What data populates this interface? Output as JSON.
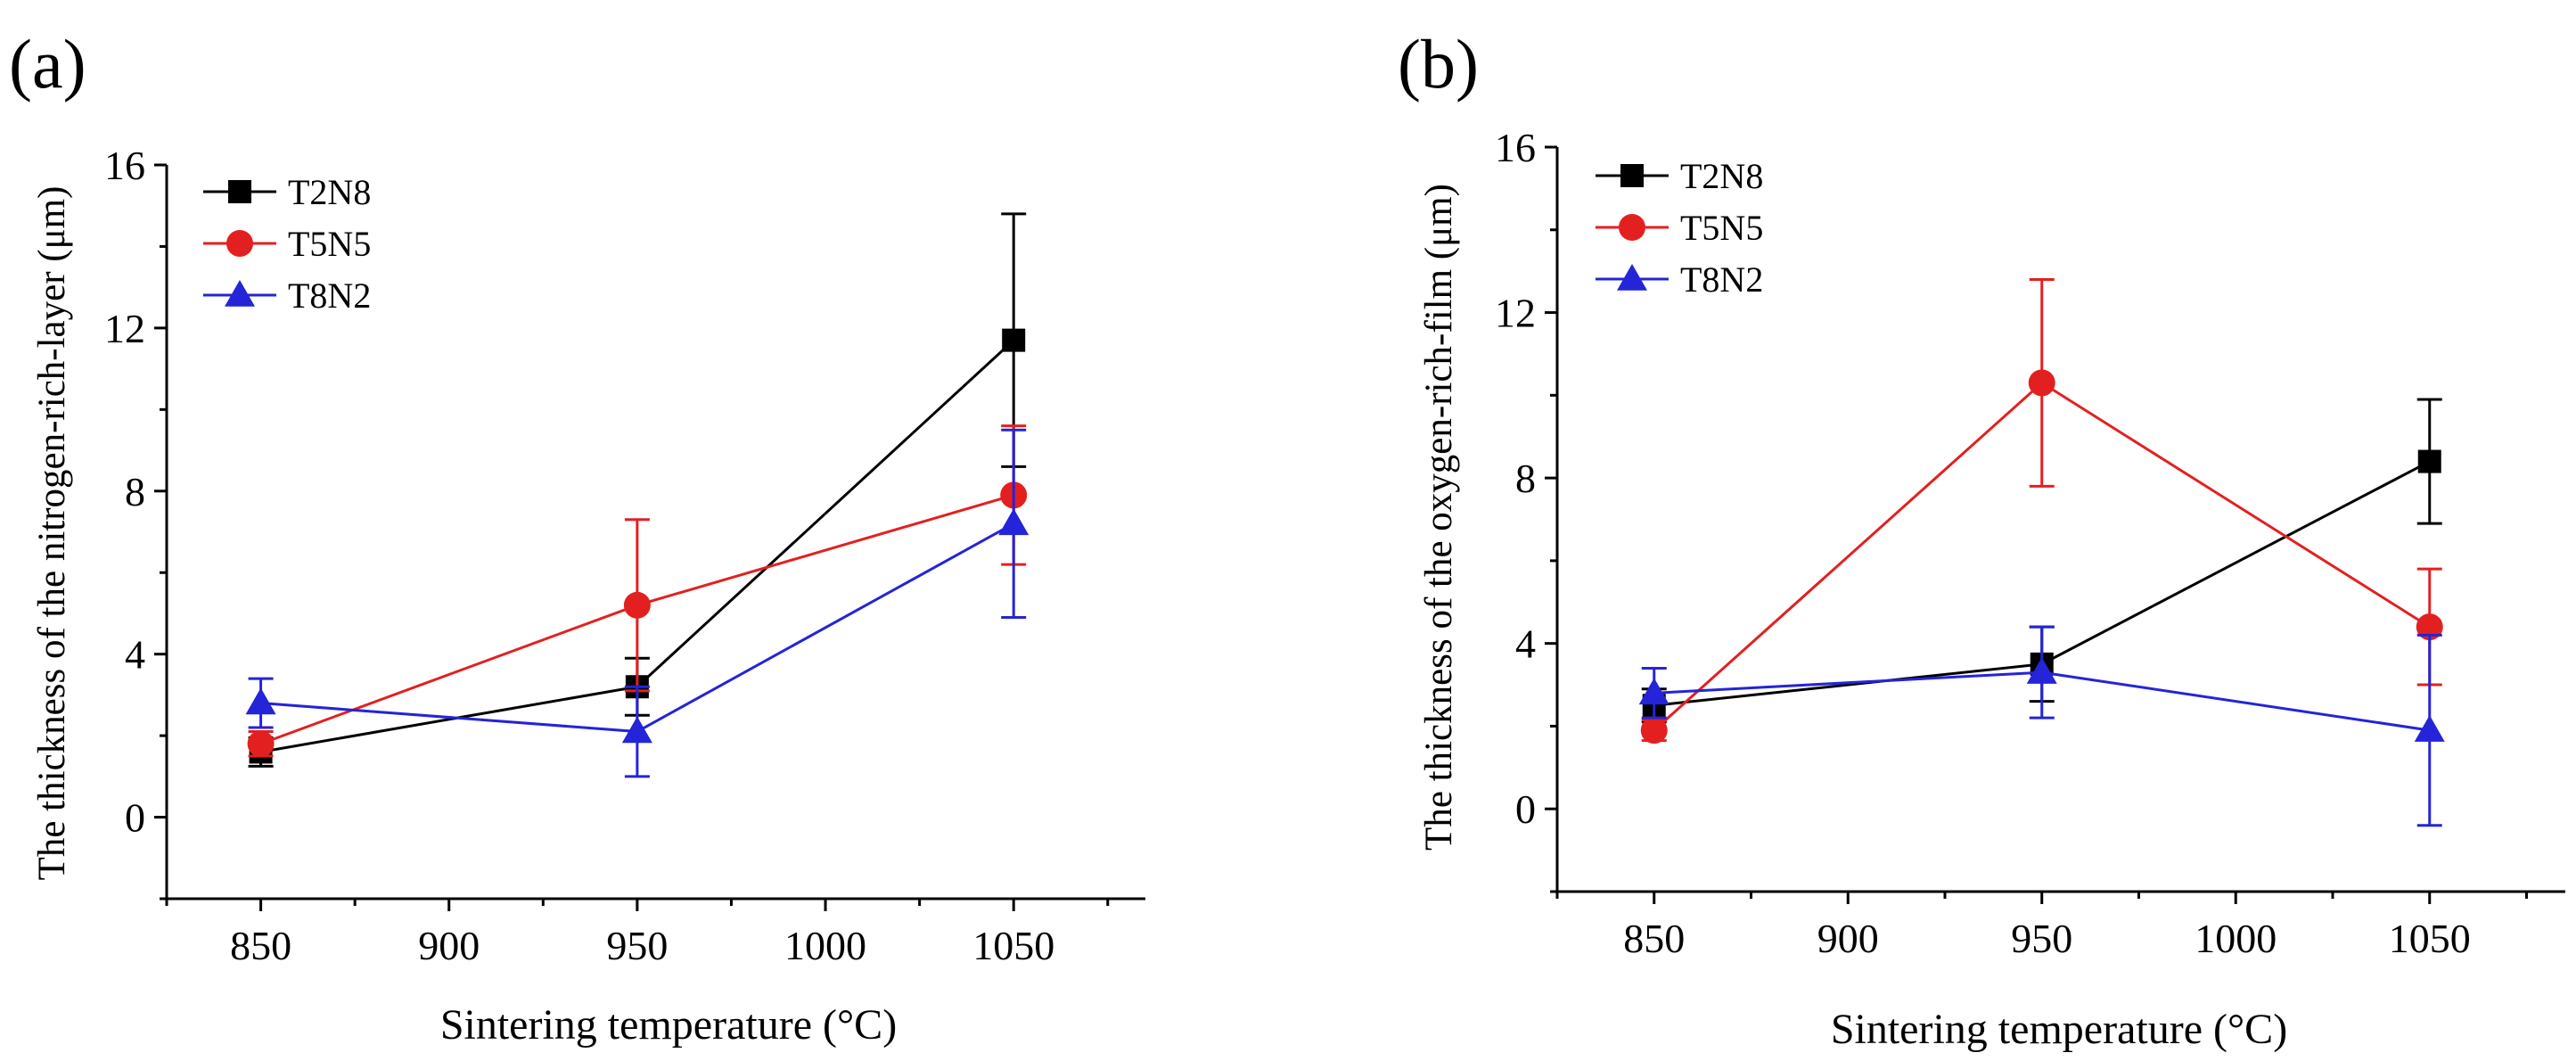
{
  "chart_data": [
    {
      "panel": "(a)",
      "type": "line",
      "title": "",
      "xlabel": "Sintering temperature (°C)",
      "ylabel": "The thickness of the nitrogen-rich-layer (μm)",
      "xlim": [
        825,
        1085
      ],
      "ylim": [
        -2,
        16
      ],
      "xticks": [
        850,
        900,
        950,
        1000,
        1050
      ],
      "yticks": [
        0,
        4,
        8,
        12,
        16
      ],
      "x": [
        850,
        950,
        1050
      ],
      "legend": "top-left",
      "grid": false,
      "series": [
        {
          "name": "T2N8",
          "color": "#000000",
          "marker": "square",
          "values": [
            1.6,
            3.2,
            11.7
          ],
          "errors": [
            0.35,
            0.7,
            3.1
          ]
        },
        {
          "name": "T5N5",
          "color": "#e32020",
          "marker": "circle",
          "values": [
            1.8,
            5.2,
            7.9
          ],
          "errors": [
            0.3,
            2.1,
            1.7
          ]
        },
        {
          "name": "T8N2",
          "color": "#2424d8",
          "marker": "triangle",
          "values": [
            2.8,
            2.1,
            7.2
          ],
          "errors": [
            0.6,
            1.1,
            2.3
          ]
        }
      ]
    },
    {
      "panel": "(b)",
      "type": "line",
      "title": "",
      "xlabel": "Sintering temperature (°C)",
      "ylabel": "The thickness of the oxygen-rich-film (μm)",
      "xlim": [
        825,
        1085
      ],
      "ylim": [
        -2,
        16
      ],
      "xticks": [
        850,
        900,
        950,
        1000,
        1050
      ],
      "yticks": [
        0,
        4,
        8,
        12,
        16
      ],
      "x": [
        850,
        950,
        1050
      ],
      "legend": "top-left",
      "grid": false,
      "series": [
        {
          "name": "T2N8",
          "color": "#000000",
          "marker": "square",
          "values": [
            2.5,
            3.5,
            8.4
          ],
          "errors": [
            0.4,
            0.9,
            1.5
          ]
        },
        {
          "name": "T5N5",
          "color": "#e32020",
          "marker": "circle",
          "values": [
            1.9,
            10.3,
            4.4
          ],
          "errors": [
            0.25,
            2.5,
            1.4
          ]
        },
        {
          "name": "T8N2",
          "color": "#2424d8",
          "marker": "triangle",
          "values": [
            2.8,
            3.3,
            1.9
          ],
          "errors": [
            0.6,
            1.1,
            2.3
          ]
        }
      ]
    }
  ]
}
